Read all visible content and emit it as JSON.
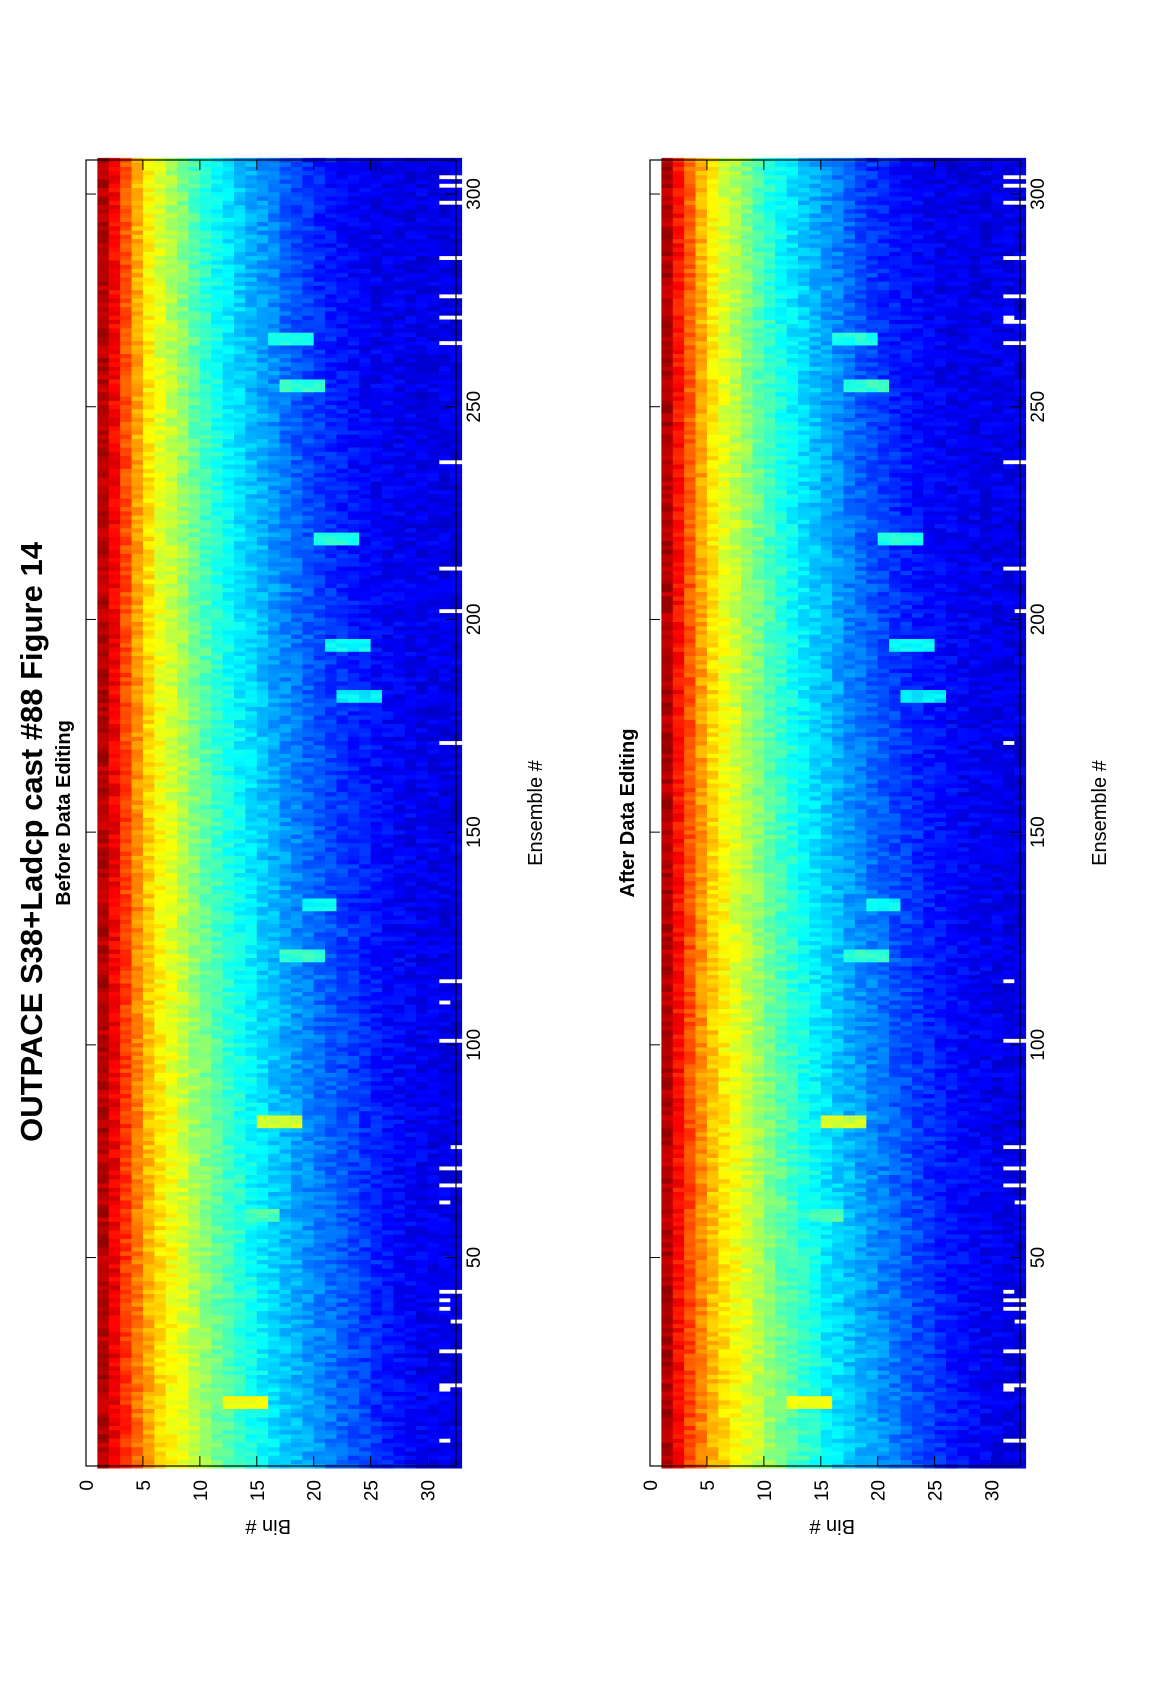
{
  "figure": {
    "title": "OUTPACE S38+Ladcp cast #88  Figure 14"
  },
  "chart_data": [
    {
      "type": "heatmap",
      "title": "Before Data Editing",
      "xlabel": "Ensemble #",
      "ylabel": "Bin #",
      "xlim": [
        1,
        308
      ],
      "ylim": [
        0,
        32.5
      ],
      "xticks": [
        50,
        100,
        150,
        200,
        250,
        300
      ],
      "yticks": [
        0,
        5,
        10,
        15,
        20,
        25,
        30
      ],
      "colormap": "jet",
      "first_bin_blank": true,
      "grid": false,
      "intensity_profile": {
        "description": "approximate color level per bin (0=dark blue,1=dark red) at ensemble 1 and ensemble 308",
        "bins": [
          1,
          2,
          3,
          4,
          5,
          6,
          8,
          10,
          12,
          14,
          16,
          18,
          20,
          22,
          24,
          26,
          28,
          30,
          32
        ],
        "level_at_start": [
          0.97,
          0.93,
          0.86,
          0.8,
          0.74,
          0.68,
          0.62,
          0.55,
          0.47,
          0.42,
          0.36,
          0.32,
          0.28,
          0.24,
          0.2,
          0.16,
          0.13,
          0.11,
          0.1
        ],
        "level_at_end": [
          0.97,
          0.92,
          0.84,
          0.74,
          0.66,
          0.6,
          0.52,
          0.42,
          0.36,
          0.3,
          0.26,
          0.2,
          0.16,
          0.13,
          0.11,
          0.1,
          0.1,
          0.1,
          0.1
        ]
      },
      "highlight_streaks": [
        {
          "ensemble": 16,
          "bins": [
            12,
            15
          ],
          "level": 0.62
        },
        {
          "ensemble": 60,
          "bins": [
            14,
            16
          ],
          "level": 0.45
        },
        {
          "ensemble": 82,
          "bins": [
            15,
            18
          ],
          "level": 0.58
        },
        {
          "ensemble": 121,
          "bins": [
            17,
            20
          ],
          "level": 0.42
        },
        {
          "ensemble": 133,
          "bins": [
            19,
            21
          ],
          "level": 0.38
        },
        {
          "ensemble": 182,
          "bins": [
            22,
            25
          ],
          "level": 0.36
        },
        {
          "ensemble": 194,
          "bins": [
            21,
            24
          ],
          "level": 0.38
        },
        {
          "ensemble": 219,
          "bins": [
            20,
            23
          ],
          "level": 0.4
        },
        {
          "ensemble": 255,
          "bins": [
            17,
            20
          ],
          "level": 0.42
        },
        {
          "ensemble": 266,
          "bins": [
            16,
            19
          ],
          "level": 0.4
        }
      ],
      "gap_ensembles": [
        7,
        19,
        20,
        28,
        35,
        38,
        40,
        42,
        63,
        67,
        71,
        76,
        101,
        110,
        115,
        168,
        171,
        202,
        212,
        237,
        265,
        270,
        271,
        276,
        285,
        298,
        302,
        304
      ]
    },
    {
      "type": "heatmap",
      "title": "After Data Editing",
      "xlabel": "Ensemble #",
      "ylabel": "Bin #",
      "xlim": [
        1,
        308
      ],
      "ylim": [
        0,
        32.5
      ],
      "xticks": [
        50,
        100,
        150,
        200,
        250,
        300
      ],
      "yticks": [
        0,
        5,
        10,
        15,
        20,
        25,
        30
      ],
      "colormap": "jet",
      "first_bin_blank": true,
      "grid": false,
      "intensity_profile": {
        "description": "approximate color level per bin (0=dark blue,1=dark red) at ensemble 1 and ensemble 308",
        "bins": [
          1,
          2,
          3,
          4,
          5,
          6,
          8,
          10,
          12,
          14,
          16,
          18,
          20,
          22,
          24,
          26,
          28,
          30,
          32
        ],
        "level_at_start": [
          1.0,
          0.9,
          0.84,
          0.78,
          0.72,
          0.68,
          0.62,
          0.55,
          0.47,
          0.42,
          0.36,
          0.32,
          0.28,
          0.24,
          0.2,
          0.16,
          0.13,
          0.11,
          0.1
        ],
        "level_at_end": [
          1.0,
          0.9,
          0.82,
          0.74,
          0.66,
          0.6,
          0.52,
          0.42,
          0.36,
          0.3,
          0.26,
          0.2,
          0.16,
          0.13,
          0.11,
          0.1,
          0.1,
          0.1,
          0.1
        ]
      },
      "highlight_streaks": [
        {
          "ensemble": 16,
          "bins": [
            12,
            15
          ],
          "level": 0.62
        },
        {
          "ensemble": 60,
          "bins": [
            14,
            16
          ],
          "level": 0.45
        },
        {
          "ensemble": 82,
          "bins": [
            15,
            18
          ],
          "level": 0.58
        },
        {
          "ensemble": 121,
          "bins": [
            17,
            20
          ],
          "level": 0.42
        },
        {
          "ensemble": 133,
          "bins": [
            19,
            21
          ],
          "level": 0.38
        },
        {
          "ensemble": 182,
          "bins": [
            22,
            25
          ],
          "level": 0.36
        },
        {
          "ensemble": 194,
          "bins": [
            21,
            24
          ],
          "level": 0.38
        },
        {
          "ensemble": 219,
          "bins": [
            20,
            23
          ],
          "level": 0.4
        },
        {
          "ensemble": 255,
          "bins": [
            17,
            20
          ],
          "level": 0.42
        },
        {
          "ensemble": 266,
          "bins": [
            16,
            19
          ],
          "level": 0.4
        }
      ],
      "gap_ensembles": [
        7,
        19,
        20,
        28,
        35,
        38,
        40,
        42,
        63,
        67,
        71,
        76,
        101,
        110,
        115,
        168,
        171,
        202,
        212,
        237,
        265,
        270,
        271,
        276,
        285,
        298,
        302,
        304
      ]
    }
  ]
}
